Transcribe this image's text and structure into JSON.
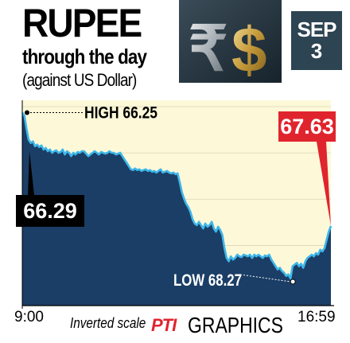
{
  "header": {
    "title": "RUPEE",
    "subtitle": "through the day",
    "subtitle2": "(against US Dollar)",
    "date_month": "SEP",
    "date_day": "3",
    "banner_symbols": "₹$"
  },
  "footer": {
    "note": "Inverted scale",
    "logo_pti": "PTI",
    "logo_graphics": "GRAPHICS"
  },
  "colors": {
    "area_fill": "#1b3e66",
    "background_band": "#fdf9d8",
    "line": "#3fb7ea",
    "close_badge": "#e0242e",
    "open_badge": "#000000"
  },
  "chart_data": {
    "type": "area",
    "inverted_y": true,
    "x_start_label": "9:00",
    "x_end_label": "16:59",
    "annotations": {
      "high": "HIGH 66.25",
      "low": "LOW 68.27",
      "open": "66.29",
      "close": "67.63"
    },
    "ylim": [
      66.1,
      68.6
    ],
    "values": [
      66.25,
      66.29,
      66.45,
      66.58,
      66.62,
      66.6,
      66.66,
      66.64,
      66.67,
      66.65,
      66.7,
      66.68,
      66.72,
      66.7,
      66.74,
      66.72,
      66.71,
      66.74,
      66.73,
      66.7,
      66.76,
      66.72,
      66.74,
      66.78,
      66.74,
      66.76,
      66.73,
      66.74,
      66.72,
      66.72,
      66.75,
      66.78,
      66.76,
      66.74,
      66.72,
      66.74,
      66.76,
      66.73,
      66.74,
      66.75,
      66.74,
      66.72,
      66.74,
      66.74,
      66.76,
      66.75,
      66.74,
      66.78,
      66.82,
      66.86,
      66.9,
      66.94,
      66.95,
      66.93,
      66.95,
      66.94,
      66.96,
      66.95,
      66.94,
      66.96,
      66.95,
      66.97,
      66.96,
      66.98,
      66.96,
      66.94,
      66.98,
      66.97,
      66.96,
      66.98,
      66.99,
      66.98,
      67.0,
      66.99,
      67.1,
      67.22,
      67.3,
      67.36,
      67.4,
      67.46,
      67.55,
      67.6,
      67.62,
      67.58,
      67.62,
      67.66,
      67.6,
      67.64,
      67.62,
      67.58,
      67.66,
      67.7,
      67.64,
      67.68,
      67.74,
      67.9,
      68.02,
      68.06,
      68.0,
      68.04,
      68.02,
      67.98,
      68.0,
      68.01,
      67.98,
      67.99,
      68.0,
      67.98,
      68.02,
      67.98,
      68.0,
      67.98,
      68.0,
      68.02,
      67.99,
      68.0,
      67.98,
      68.04,
      68.08,
      68.12,
      68.16,
      68.14,
      68.18,
      68.2,
      68.24,
      68.22,
      68.27,
      68.12,
      68.1,
      68.08,
      68.12,
      68.09,
      68.14,
      68.06,
      68.02,
      68.0,
      67.98,
      68.0,
      67.96,
      67.98,
      67.92,
      67.94,
      67.9,
      67.8,
      67.7,
      67.63
    ]
  }
}
